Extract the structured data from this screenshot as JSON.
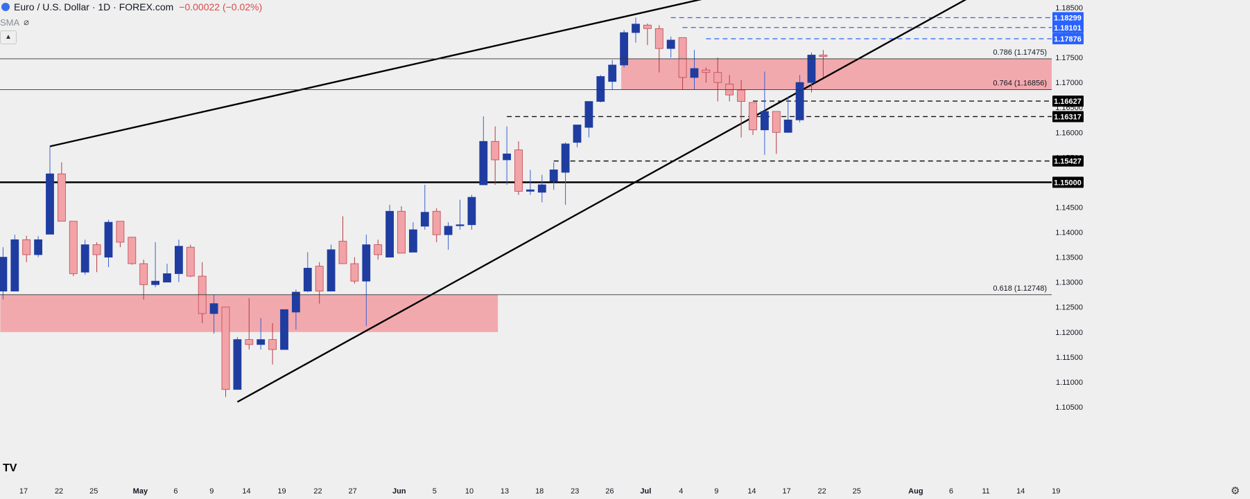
{
  "header": {
    "title": "Euro / U.S. Dollar · 1D · FOREX.com",
    "change": "−0.00022 (−0.02%)",
    "indicator": "SMA"
  },
  "colors": {
    "bull": "#1f3da0",
    "bear": "#f1a3a8",
    "zone": "#f2a9ae",
    "dash_blue": "#2962ff",
    "background": "#efefef"
  },
  "chart_data": {
    "type": "candlestick",
    "y_range": [
      1.1025,
      1.1875
    ],
    "y_ticks": [
      "1.18500",
      "1.18000",
      "1.17500",
      "1.17000",
      "1.16500",
      "1.16000",
      "1.15500",
      "1.15000",
      "1.14500",
      "1.14000",
      "1.13500",
      "1.13000",
      "1.12500",
      "1.12000",
      "1.11500",
      "1.11000",
      "1.10500"
    ],
    "x_ticks": [
      "17",
      "22",
      "25",
      "May",
      "6",
      "9",
      "14",
      "19",
      "22",
      "27",
      "Jun",
      "5",
      "10",
      "13",
      "18",
      "23",
      "26",
      "Jul",
      "4",
      "9",
      "14",
      "17",
      "22",
      "25",
      "Aug",
      "6",
      "11",
      "14",
      "19"
    ],
    "candles": [
      {
        "o": 1.1282,
        "h": 1.137,
        "l": 1.1265,
        "c": 1.135
      },
      {
        "o": 1.1282,
        "h": 1.1395,
        "l": 1.1282,
        "c": 1.1385
      },
      {
        "o": 1.1385,
        "h": 1.1393,
        "l": 1.134,
        "c": 1.1355
      },
      {
        "o": 1.1355,
        "h": 1.1392,
        "l": 1.135,
        "c": 1.1385
      },
      {
        "o": 1.1396,
        "h": 1.1572,
        "l": 1.1396,
        "c": 1.1517
      },
      {
        "o": 1.1517,
        "h": 1.154,
        "l": 1.1422,
        "c": 1.1422
      },
      {
        "o": 1.1422,
        "h": 1.1422,
        "l": 1.1312,
        "c": 1.1317
      },
      {
        "o": 1.132,
        "h": 1.1385,
        "l": 1.1315,
        "c": 1.1375
      },
      {
        "o": 1.1375,
        "h": 1.138,
        "l": 1.132,
        "c": 1.1355
      },
      {
        "o": 1.135,
        "h": 1.1425,
        "l": 1.133,
        "c": 1.142
      },
      {
        "o": 1.1422,
        "h": 1.1422,
        "l": 1.137,
        "c": 1.138
      },
      {
        "o": 1.139,
        "h": 1.139,
        "l": 1.1335,
        "c": 1.1337
      },
      {
        "o": 1.1337,
        "h": 1.1345,
        "l": 1.1265,
        "c": 1.1295
      },
      {
        "o": 1.1295,
        "h": 1.138,
        "l": 1.129,
        "c": 1.1302
      },
      {
        "o": 1.13,
        "h": 1.1337,
        "l": 1.13,
        "c": 1.1317
      },
      {
        "o": 1.1317,
        "h": 1.1385,
        "l": 1.13,
        "c": 1.1372
      },
      {
        "o": 1.137,
        "h": 1.1375,
        "l": 1.131,
        "c": 1.1312
      },
      {
        "o": 1.1312,
        "h": 1.134,
        "l": 1.1218,
        "c": 1.1237
      },
      {
        "o": 1.1237,
        "h": 1.1275,
        "l": 1.1197,
        "c": 1.1257
      },
      {
        "o": 1.125,
        "h": 1.125,
        "l": 1.107,
        "c": 1.1085
      },
      {
        "o": 1.1085,
        "h": 1.119,
        "l": 1.1085,
        "c": 1.1185
      },
      {
        "o": 1.1185,
        "h": 1.1268,
        "l": 1.1165,
        "c": 1.1175
      },
      {
        "o": 1.1175,
        "h": 1.1228,
        "l": 1.1165,
        "c": 1.1185
      },
      {
        "o": 1.1185,
        "h": 1.1218,
        "l": 1.1135,
        "c": 1.1165
      },
      {
        "o": 1.1165,
        "h": 1.1245,
        "l": 1.1165,
        "c": 1.1245
      },
      {
        "o": 1.124,
        "h": 1.1285,
        "l": 1.1205,
        "c": 1.128
      },
      {
        "o": 1.1282,
        "h": 1.136,
        "l": 1.128,
        "c": 1.1328
      },
      {
        "o": 1.1332,
        "h": 1.134,
        "l": 1.1257,
        "c": 1.1282
      },
      {
        "o": 1.1282,
        "h": 1.1375,
        "l": 1.1282,
        "c": 1.1365
      },
      {
        "o": 1.1382,
        "h": 1.1432,
        "l": 1.134,
        "c": 1.1337
      },
      {
        "o": 1.1337,
        "h": 1.135,
        "l": 1.1297,
        "c": 1.1302
      },
      {
        "o": 1.1302,
        "h": 1.1395,
        "l": 1.1212,
        "c": 1.1375
      },
      {
        "o": 1.1375,
        "h": 1.1385,
        "l": 1.1345,
        "c": 1.1355
      },
      {
        "o": 1.135,
        "h": 1.1455,
        "l": 1.135,
        "c": 1.1442
      },
      {
        "o": 1.1442,
        "h": 1.1452,
        "l": 1.1358,
        "c": 1.1358
      },
      {
        "o": 1.136,
        "h": 1.142,
        "l": 1.136,
        "c": 1.1405
      },
      {
        "o": 1.1412,
        "h": 1.1495,
        "l": 1.1405,
        "c": 1.144
      },
      {
        "o": 1.1442,
        "h": 1.1448,
        "l": 1.138,
        "c": 1.1395
      },
      {
        "o": 1.1395,
        "h": 1.142,
        "l": 1.1365,
        "c": 1.1412
      },
      {
        "o": 1.1415,
        "h": 1.1465,
        "l": 1.1405,
        "c": 1.1415
      },
      {
        "o": 1.1415,
        "h": 1.1475,
        "l": 1.1405,
        "c": 1.147
      },
      {
        "o": 1.1495,
        "h": 1.1632,
        "l": 1.1495,
        "c": 1.1582
      },
      {
        "o": 1.1582,
        "h": 1.1612,
        "l": 1.1495,
        "c": 1.1545
      },
      {
        "o": 1.1545,
        "h": 1.1612,
        "l": 1.1495,
        "c": 1.1557
      },
      {
        "o": 1.1565,
        "h": 1.1582,
        "l": 1.1475,
        "c": 1.1482
      },
      {
        "o": 1.1482,
        "h": 1.1525,
        "l": 1.1475,
        "c": 1.1485
      },
      {
        "o": 1.148,
        "h": 1.1515,
        "l": 1.146,
        "c": 1.1495
      },
      {
        "o": 1.1502,
        "h": 1.154,
        "l": 1.1485,
        "c": 1.1525
      },
      {
        "o": 1.152,
        "h": 1.158,
        "l": 1.1455,
        "c": 1.1577
      },
      {
        "o": 1.158,
        "h": 1.1615,
        "l": 1.157,
        "c": 1.1615
      },
      {
        "o": 1.161,
        "h": 1.1662,
        "l": 1.159,
        "c": 1.1662
      },
      {
        "o": 1.1662,
        "h": 1.1715,
        "l": 1.166,
        "c": 1.1712
      },
      {
        "o": 1.1702,
        "h": 1.1745,
        "l": 1.1685,
        "c": 1.1735
      },
      {
        "o": 1.1735,
        "h": 1.1805,
        "l": 1.173,
        "c": 1.18
      },
      {
        "o": 1.18,
        "h": 1.183,
        "l": 1.178,
        "c": 1.1817
      },
      {
        "o": 1.1815,
        "h": 1.1818,
        "l": 1.1775,
        "c": 1.1808
      },
      {
        "o": 1.1808,
        "h": 1.1815,
        "l": 1.172,
        "c": 1.1768
      },
      {
        "o": 1.1768,
        "h": 1.1792,
        "l": 1.175,
        "c": 1.1785
      },
      {
        "o": 1.179,
        "h": 1.179,
        "l": 1.1685,
        "c": 1.171
      },
      {
        "o": 1.171,
        "h": 1.1765,
        "l": 1.1685,
        "c": 1.1728
      },
      {
        "o": 1.1725,
        "h": 1.173,
        "l": 1.17,
        "c": 1.172
      },
      {
        "o": 1.172,
        "h": 1.175,
        "l": 1.1662,
        "c": 1.17
      },
      {
        "o": 1.1697,
        "h": 1.1715,
        "l": 1.1662,
        "c": 1.1675
      },
      {
        "o": 1.1685,
        "h": 1.1705,
        "l": 1.159,
        "c": 1.1662
      },
      {
        "o": 1.166,
        "h": 1.166,
        "l": 1.1595,
        "c": 1.1605
      },
      {
        "o": 1.1605,
        "h": 1.1722,
        "l": 1.1555,
        "c": 1.1642
      },
      {
        "o": 1.1642,
        "h": 1.1642,
        "l": 1.1557,
        "c": 1.16
      },
      {
        "o": 1.16,
        "h": 1.1672,
        "l": 1.16,
        "c": 1.1625
      },
      {
        "o": 1.1625,
        "h": 1.1715,
        "l": 1.162,
        "c": 1.17
      },
      {
        "o": 1.17,
        "h": 1.176,
        "l": 1.168,
        "c": 1.1755
      },
      {
        "o": 1.1755,
        "h": 1.1765,
        "l": 1.171,
        "c": 1.1752
      }
    ],
    "zones": [
      {
        "from": 1.12,
        "to": 1.12748,
        "start": 0,
        "end": 42
      },
      {
        "from": 1.16856,
        "to": 1.17475,
        "start": 53,
        "end": 100
      }
    ],
    "fib_labels": [
      {
        "text": "0.786 (1.17475)",
        "y": 1.17475
      },
      {
        "text": "0.764 (1.16856)",
        "y": 1.16856
      },
      {
        "text": "0.618 (1.12748)",
        "y": 1.12748
      }
    ],
    "levels": [
      {
        "y": 1.18299,
        "label": "1.18299",
        "style": "dash-blue",
        "start": 57
      },
      {
        "y": 1.18101,
        "label": "1.18101",
        "style": "dash-blue",
        "start": 58
      },
      {
        "y": 1.17876,
        "label": "1.17876",
        "style": "dash-blue",
        "start": 60
      },
      {
        "y": 1.16627,
        "label": "1.16627",
        "style": "dash-black",
        "start": 64
      },
      {
        "y": 1.16317,
        "label": "1.16317",
        "style": "dash-black",
        "start": 43
      },
      {
        "y": 1.15427,
        "label": "1.15427",
        "style": "dash-black",
        "start": 47
      },
      {
        "y": 1.15,
        "label": "1.15000",
        "style": "solid-thick",
        "start": -2
      }
    ],
    "trendlines": [
      {
        "x1": 4,
        "y1": 1.1572,
        "x2": 64,
        "y2": 1.189
      },
      {
        "x1": 20,
        "y1": 1.106,
        "x2": 84,
        "y2": 1.189
      }
    ],
    "grid": false,
    "legend": "none"
  }
}
